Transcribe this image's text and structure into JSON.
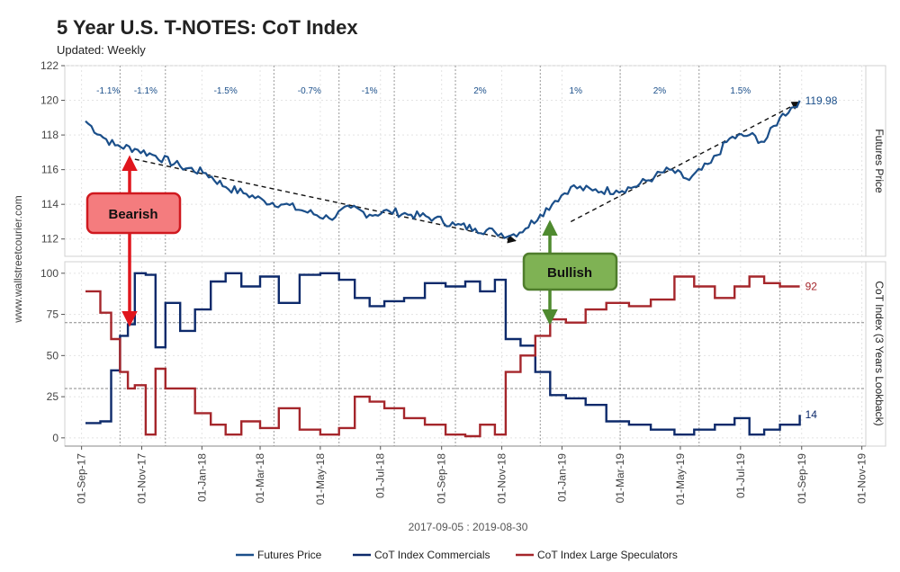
{
  "title": "5 Year U.S. T-NOTES: CoT Index",
  "subtitle": "Updated: Weekly",
  "source_label": "www.wallstreetcourier.com",
  "caption": "2017-09-05 : 2019-08-30",
  "colors": {
    "futures": "#1b4f8a",
    "commercials": "#0d2a6b",
    "speculators": "#a5262b",
    "bearish_fill": "#f47c7e",
    "bearish_border": "#d0191f",
    "bullish_fill": "#7fb254",
    "bullish_border": "#4f7d2c"
  },
  "chart_data": [
    {
      "type": "line",
      "panel": "top",
      "strip_label": "Futures Price",
      "ylim": [
        111,
        122
      ],
      "yticks": [
        112,
        114,
        116,
        118,
        120,
        122
      ],
      "series": [
        {
          "name": "Futures Price",
          "end_label": "119.98",
          "x": [
            "2017-09-05",
            "2017-09-20",
            "2017-10-05",
            "2017-10-25",
            "2017-11-15",
            "2017-12-10",
            "2018-01-05",
            "2018-01-25",
            "2018-02-15",
            "2018-03-05",
            "2018-03-25",
            "2018-04-15",
            "2018-05-10",
            "2018-06-01",
            "2018-06-20",
            "2018-07-10",
            "2018-08-01",
            "2018-08-25",
            "2018-09-15",
            "2018-10-05",
            "2018-10-25",
            "2018-11-10",
            "2018-11-25",
            "2018-12-10",
            "2018-12-25",
            "2019-01-10",
            "2019-02-01",
            "2019-02-25",
            "2019-03-15",
            "2019-04-05",
            "2019-04-20",
            "2019-05-10",
            "2019-06-01",
            "2019-06-20",
            "2019-07-10",
            "2019-07-25",
            "2019-08-10",
            "2019-08-30"
          ],
          "values": [
            118.8,
            118.0,
            117.4,
            117.2,
            116.8,
            116.2,
            115.8,
            115.0,
            114.6,
            114.2,
            114.0,
            113.6,
            113.2,
            113.8,
            113.4,
            113.6,
            113.4,
            113.2,
            112.8,
            112.6,
            112.4,
            112.2,
            112.6,
            113.4,
            114.2,
            115.0,
            114.8,
            114.8,
            115.0,
            115.6,
            116.0,
            115.4,
            116.4,
            117.8,
            118.0,
            117.6,
            119.0,
            119.98
          ]
        }
      ],
      "period_changes": [
        "-1.1%",
        "-1.1%",
        "-1.5%",
        "-0.7%",
        "-1%",
        "2%",
        "1%",
        "2%",
        "1.5%"
      ],
      "trend_lines": [
        {
          "from": [
            "2017-10-25",
            116.6
          ],
          "to": [
            "2018-11-15",
            111.9
          ]
        },
        {
          "from": [
            "2019-01-10",
            113.0
          ],
          "to": [
            "2019-08-30",
            119.9
          ]
        }
      ]
    },
    {
      "type": "line",
      "panel": "bottom",
      "strip_label": "CoT Index (3 Years Lookback)",
      "ylim": [
        -5,
        107
      ],
      "yticks": [
        0,
        25,
        50,
        75,
        100
      ],
      "reference_lines": [
        70,
        30
      ],
      "xlabels": [
        "01-Sep-17",
        "01-Nov-17",
        "01-Jan-18",
        "01-Mar-18",
        "01-May-18",
        "01-Jul-18",
        "01-Sep-18",
        "01-Nov-18",
        "01-Jan-19",
        "01-Mar-19",
        "01-May-19",
        "01-Jul-19",
        "01-Sep-19",
        "01-Nov-19"
      ],
      "x_range": [
        "2017-08-15",
        "2019-11-05"
      ],
      "series": [
        {
          "name": "CoT Index Commercials",
          "end_label": "14",
          "x": [
            "2017-09-05",
            "2017-09-20",
            "2017-10-01",
            "2017-10-10",
            "2017-10-18",
            "2017-10-25",
            "2017-11-05",
            "2017-11-15",
            "2017-11-25",
            "2017-12-10",
            "2017-12-25",
            "2018-01-10",
            "2018-01-25",
            "2018-02-10",
            "2018-03-01",
            "2018-03-20",
            "2018-04-10",
            "2018-05-01",
            "2018-05-20",
            "2018-06-05",
            "2018-06-20",
            "2018-07-05",
            "2018-07-25",
            "2018-08-15",
            "2018-09-05",
            "2018-09-25",
            "2018-10-10",
            "2018-10-25",
            "2018-11-05",
            "2018-11-20",
            "2018-12-05",
            "2018-12-20",
            "2019-01-05",
            "2019-01-25",
            "2019-02-15",
            "2019-03-10",
            "2019-04-01",
            "2019-04-25",
            "2019-05-15",
            "2019-06-05",
            "2019-06-25",
            "2019-07-10",
            "2019-07-25",
            "2019-08-10",
            "2019-08-30"
          ],
          "values": [
            9,
            10,
            41,
            62,
            69,
            100,
            99,
            55,
            82,
            65,
            78,
            95,
            100,
            92,
            98,
            82,
            99,
            100,
            96,
            85,
            80,
            83,
            85,
            94,
            92,
            95,
            89,
            96,
            60,
            56,
            40,
            26,
            24,
            20,
            10,
            8,
            5,
            2,
            5,
            8,
            12,
            2,
            5,
            8,
            14
          ]
        },
        {
          "name": "CoT Index Large Speculators",
          "end_label": "92",
          "x": [
            "2017-09-05",
            "2017-09-20",
            "2017-10-01",
            "2017-10-10",
            "2017-10-18",
            "2017-10-25",
            "2017-11-05",
            "2017-11-15",
            "2017-11-25",
            "2017-12-10",
            "2017-12-25",
            "2018-01-10",
            "2018-01-25",
            "2018-02-10",
            "2018-03-01",
            "2018-03-20",
            "2018-04-10",
            "2018-05-01",
            "2018-05-20",
            "2018-06-05",
            "2018-06-20",
            "2018-07-05",
            "2018-07-25",
            "2018-08-15",
            "2018-09-05",
            "2018-09-25",
            "2018-10-10",
            "2018-10-25",
            "2018-11-05",
            "2018-11-20",
            "2018-12-05",
            "2018-12-20",
            "2019-01-05",
            "2019-01-25",
            "2019-02-15",
            "2019-03-10",
            "2019-04-01",
            "2019-04-25",
            "2019-05-15",
            "2019-06-05",
            "2019-06-25",
            "2019-07-10",
            "2019-07-25",
            "2019-08-10",
            "2019-08-30"
          ],
          "values": [
            89,
            76,
            60,
            40,
            30,
            32,
            2,
            42,
            30,
            30,
            15,
            8,
            2,
            10,
            6,
            18,
            5,
            2,
            6,
            25,
            22,
            18,
            12,
            8,
            2,
            1,
            8,
            2,
            40,
            50,
            62,
            72,
            70,
            78,
            82,
            80,
            84,
            98,
            92,
            85,
            92,
            98,
            94,
            92,
            92
          ]
        }
      ]
    }
  ],
  "annotations": {
    "bearish_label": "Bearish",
    "bullish_label": "Bullish"
  },
  "legend": [
    {
      "label": "Futures Price",
      "color": "#1b4f8a"
    },
    {
      "label": "CoT Index Commercials",
      "color": "#0d2a6b"
    },
    {
      "label": "CoT Index Large Speculators",
      "color": "#a5262b"
    }
  ]
}
